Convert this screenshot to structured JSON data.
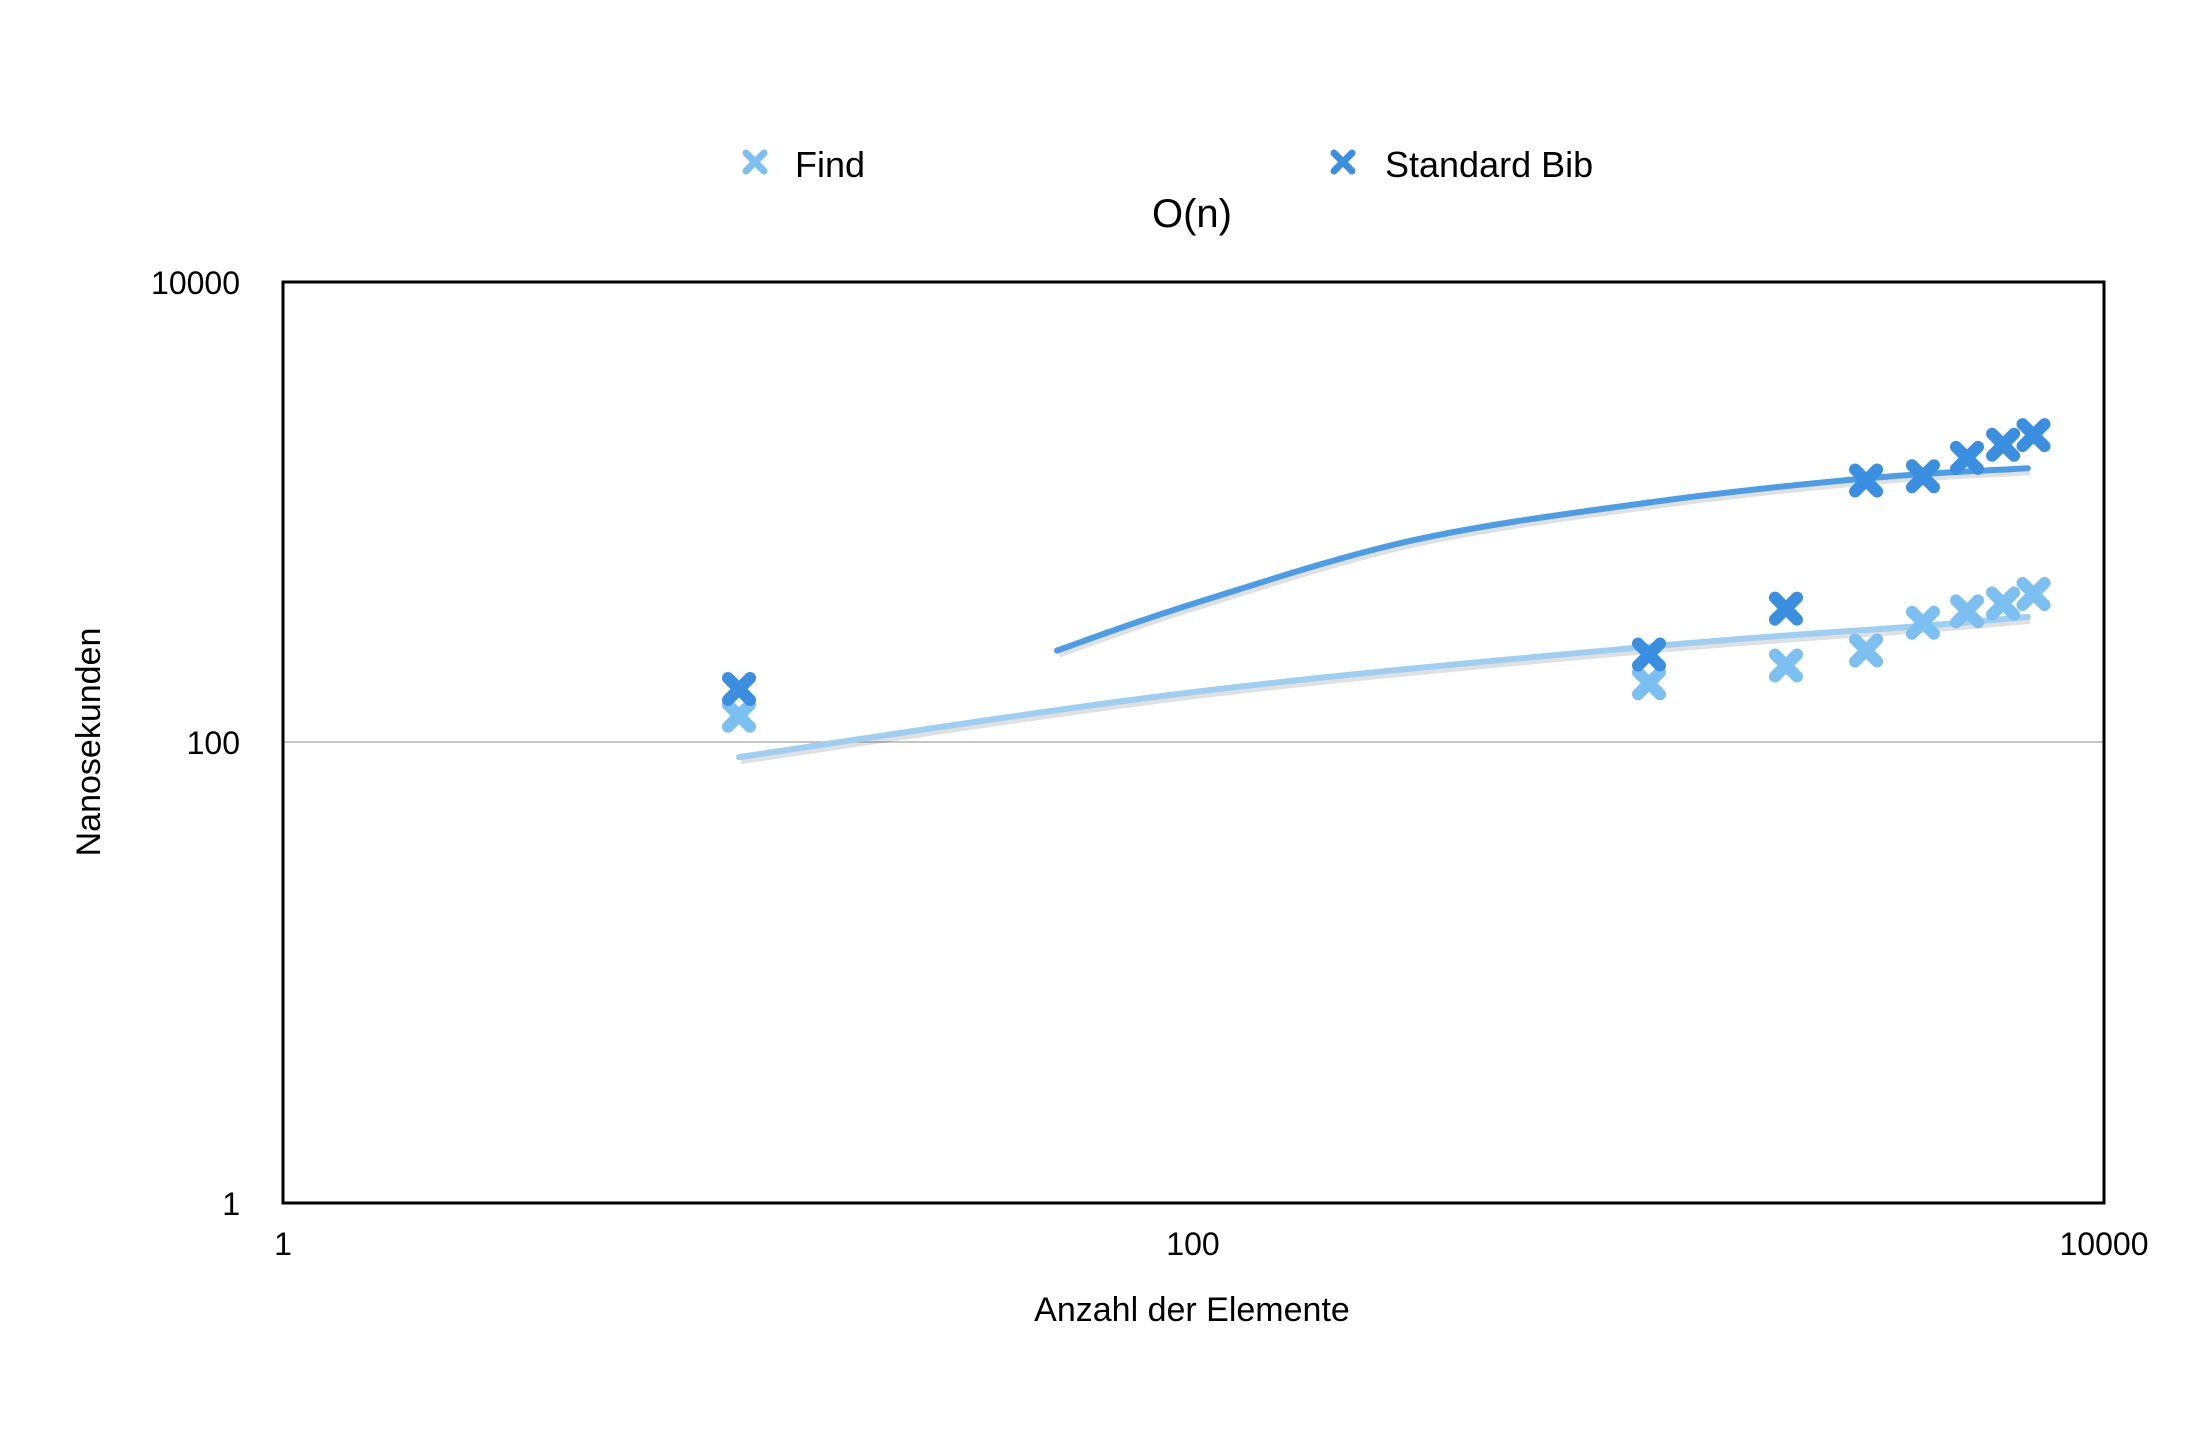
{
  "chart_data": {
    "type": "scatter",
    "title": "O(n)",
    "xlabel": "Anzahl der Elemente",
    "ylabel": "Nanosekunden",
    "xscale": "log",
    "yscale": "log",
    "xlim": [
      1,
      10000
    ],
    "ylim": [
      1,
      10000
    ],
    "x_ticks": [
      "1",
      "100",
      "10000"
    ],
    "y_ticks": [
      "1",
      "100",
      "10000"
    ],
    "grid": "horizontal at 100",
    "legend_position": "top",
    "series": [
      {
        "name": "Find",
        "color": "#7cc0f2",
        "marker": "x",
        "points": [
          {
            "x": 10,
            "y": 130
          },
          {
            "x": 1000,
            "y": 180
          },
          {
            "x": 2000,
            "y": 215
          },
          {
            "x": 3000,
            "y": 250
          },
          {
            "x": 4000,
            "y": 330
          },
          {
            "x": 5000,
            "y": 370
          },
          {
            "x": 6000,
            "y": 400
          },
          {
            "x": 7000,
            "y": 440
          }
        ],
        "trendline": {
          "color": "#9ecff3",
          "x": [
            10,
            100,
            1000,
            4000,
            6800
          ],
          "y": [
            86,
            165,
            260,
            320,
            350
          ]
        }
      },
      {
        "name": "Standard Bib",
        "color": "#3b8fe0",
        "marker": "x",
        "points": [
          {
            "x": 10,
            "y": 170
          },
          {
            "x": 1000,
            "y": 240
          },
          {
            "x": 2000,
            "y": 380
          },
          {
            "x": 3000,
            "y": 1370
          },
          {
            "x": 4000,
            "y": 1430
          },
          {
            "x": 5000,
            "y": 1720
          },
          {
            "x": 6000,
            "y": 1960
          },
          {
            "x": 7000,
            "y": 2160
          }
        ],
        "trendline": {
          "color": "#4a9de6",
          "x": [
            50,
            100,
            300,
            1000,
            3000,
            6800
          ],
          "y": [
            250,
            400,
            750,
            1100,
            1400,
            1550
          ]
        }
      }
    ]
  }
}
